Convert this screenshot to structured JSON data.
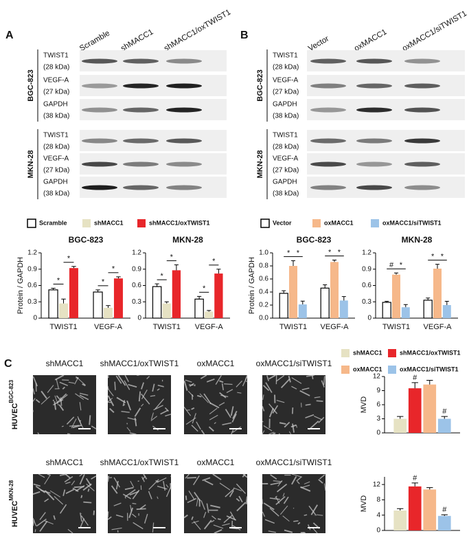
{
  "panel_a": {
    "letter": "A",
    "lanes": [
      "Scramble",
      "shMACC1",
      "shMACC1/oxTWIST1"
    ],
    "blots": [
      {
        "cell_line": "BGC-823",
        "rows": [
          {
            "protein": "TWIST1",
            "size": "(28 kDa)"
          },
          {
            "protein": "VEGF-A",
            "size": "(27 kDa)"
          },
          {
            "protein": "GAPDH",
            "size": "(38 kDa)"
          }
        ]
      },
      {
        "cell_line": "MKN-28",
        "rows": [
          {
            "protein": "TWIST1",
            "size": "(28 kDa)"
          },
          {
            "protein": "VEGF-A",
            "size": "(27 kDa)"
          },
          {
            "protein": "GAPDH",
            "size": "(38 kDa)"
          }
        ]
      }
    ]
  },
  "panel_b": {
    "letter": "B",
    "lanes": [
      "Vector",
      "oxMACC1",
      "oxMACC1/siTWIST1"
    ],
    "blots": [
      {
        "cell_line": "BGC-823",
        "rows": [
          {
            "protein": "TWIST1",
            "size": "(28 kDa)"
          },
          {
            "protein": "VEGF-A",
            "size": "(27 kDa)"
          },
          {
            "protein": "GAPDH",
            "size": "(38 kDa)"
          }
        ]
      },
      {
        "cell_line": "MKN-28",
        "rows": [
          {
            "protein": "TWIST1",
            "size": "(28 kDa)"
          },
          {
            "protein": "VEGF-A",
            "size": "(27 kDa)"
          },
          {
            "protein": "GAPDH",
            "size": "(38 kDa)"
          }
        ]
      }
    ]
  },
  "panel_c": {
    "letter": "C",
    "image_rows": [
      {
        "cell_line": "HUVEC",
        "superscript": "BGC-823",
        "labels": [
          "shMACC1",
          "shMACC1/oxTWIST1",
          "oxMACC1",
          "oxMACC1/siTWIST1"
        ]
      },
      {
        "cell_line": "HUVEC",
        "superscript": "MKN-28",
        "labels": [
          "shMACC1",
          "shMACC1/oxTWIST1",
          "oxMACC1",
          "oxMACC1/siTWIST1"
        ]
      }
    ]
  },
  "chart_data": [
    {
      "type": "bar",
      "title": "BGC-823",
      "ylabel": "Protein / GAPDH",
      "categories": [
        "TWIST1",
        "VEGF-A"
      ],
      "series": [
        {
          "name": "Scramble",
          "color": "#ffffff",
          "values": [
            0.52,
            0.48
          ],
          "errors": [
            0.03,
            0.04
          ]
        },
        {
          "name": "shMACC1",
          "color": "#e6e2c3",
          "values": [
            0.27,
            0.19
          ],
          "errors": [
            0.08,
            0.04
          ]
        },
        {
          "name": "shMACC1/oxTWIST1",
          "color": "#e8262a",
          "values": [
            0.92,
            0.73
          ],
          "errors": [
            0.03,
            0.03
          ]
        }
      ],
      "ylim": [
        0,
        1.2
      ],
      "yticks": [
        0,
        0.3,
        0.6,
        0.9,
        1.2
      ],
      "annotations": [
        "*",
        "*",
        "*",
        "*"
      ]
    },
    {
      "type": "bar",
      "title": "MKN-28",
      "categories": [
        "TWIST1",
        "VEGF-A"
      ],
      "series": [
        {
          "color": "#ffffff",
          "values": [
            0.58,
            0.35
          ],
          "errors": [
            0.05,
            0.05
          ]
        },
        {
          "color": "#e6e2c3",
          "values": [
            0.27,
            0.12
          ],
          "errors": [
            0.03,
            0.02
          ]
        },
        {
          "color": "#e8262a",
          "values": [
            0.88,
            0.82
          ],
          "errors": [
            0.1,
            0.08
          ]
        }
      ],
      "ylim": [
        0,
        1.2
      ],
      "yticks": [
        0,
        0.3,
        0.6,
        0.9,
        1.2
      ],
      "annotations": [
        "*",
        "*",
        "*",
        "*"
      ]
    },
    {
      "type": "bar",
      "title": "BGC-823",
      "ylabel": "Protein / GAPDH",
      "categories": [
        "TWIST1",
        "VEGF-A"
      ],
      "series": [
        {
          "name": "Vector",
          "color": "#ffffff",
          "values": [
            0.38,
            0.46
          ],
          "errors": [
            0.04,
            0.05
          ]
        },
        {
          "name": "oxMACC1",
          "color": "#f6b88a",
          "values": [
            0.8,
            0.86
          ],
          "errors": [
            0.08,
            0.03
          ]
        },
        {
          "name": "oxMACC1/siTWIST1",
          "color": "#9cc3e8",
          "values": [
            0.21,
            0.27
          ],
          "errors": [
            0.05,
            0.06
          ]
        }
      ],
      "ylim": [
        0,
        1.0
      ],
      "yticks": [
        {
          "value": 0,
          "label": "0.0"
        },
        0.2,
        0.4,
        0.6,
        0.8,
        {
          "value": 1.0,
          "label": "1.0"
        }
      ],
      "annotations": [
        "*",
        "*",
        "*",
        "*"
      ]
    },
    {
      "type": "bar",
      "title": "MKN-28",
      "categories": [
        "TWIST1",
        "VEGF-A"
      ],
      "series": [
        {
          "color": "#ffffff",
          "values": [
            0.29,
            0.33
          ],
          "errors": [
            0.02,
            0.04
          ]
        },
        {
          "color": "#f6b88a",
          "values": [
            0.8,
            0.91
          ],
          "errors": [
            0.03,
            0.08
          ]
        },
        {
          "color": "#9cc3e8",
          "values": [
            0.2,
            0.24
          ],
          "errors": [
            0.05,
            0.07
          ]
        }
      ],
      "ylim": [
        0,
        1.2
      ],
      "yticks": [
        0,
        0.3,
        0.6,
        0.9,
        1.2
      ],
      "annotations": [
        "#",
        "*",
        "*",
        "*"
      ]
    },
    {
      "type": "bar",
      "ylabel": "MVD",
      "series": [
        {
          "name": "shMACC1",
          "color": "#e6e2c3",
          "values": [
            3.0
          ],
          "errors": [
            0.5
          ]
        },
        {
          "name": "shMACC1/oxTWIST1",
          "color": "#e8262a",
          "values": [
            9.5
          ],
          "errors": [
            1.2
          ]
        },
        {
          "name": "oxMACC1",
          "color": "#f6b88a",
          "values": [
            10.3
          ],
          "errors": [
            0.9
          ]
        },
        {
          "name": "oxMACC1/siTWIST1",
          "color": "#9cc3e8",
          "values": [
            3.0
          ],
          "errors": [
            0.5
          ]
        }
      ],
      "ylim": [
        0,
        12
      ],
      "yticks": [
        0,
        3,
        6,
        9,
        12
      ],
      "annotations": [
        "#",
        "#"
      ]
    },
    {
      "type": "bar",
      "ylabel": "MVD",
      "series": [
        {
          "color": "#e6e2c3",
          "values": [
            5.2
          ],
          "errors": [
            0.5
          ]
        },
        {
          "color": "#e8262a",
          "values": [
            11.5
          ],
          "errors": [
            0.9
          ]
        },
        {
          "color": "#f6b88a",
          "values": [
            10.7
          ],
          "errors": [
            0.5
          ]
        },
        {
          "color": "#9cc3e8",
          "values": [
            3.8
          ],
          "errors": [
            0.3
          ]
        }
      ],
      "ylim": [
        0,
        14
      ],
      "yticks": [
        0,
        4,
        8,
        12
      ],
      "annotations": [
        "#",
        "#"
      ]
    }
  ]
}
